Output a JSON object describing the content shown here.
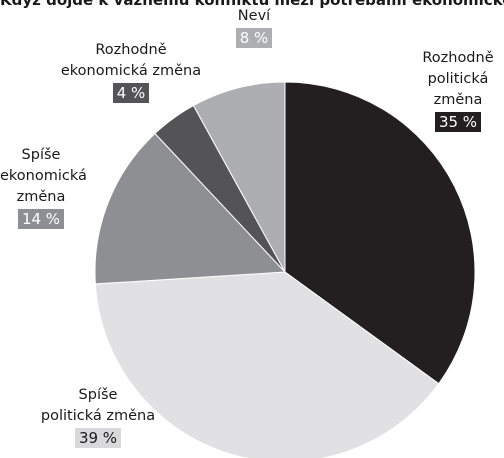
{
  "title": "Když dojde k vážnému konfliktu mezi potřebami ekonomického rozvoje a politickou změnou",
  "chart_data": {
    "type": "pie",
    "start_angle_deg": -90,
    "direction": "clockwise",
    "slices": [
      {
        "label": "Rozhodně politická změna",
        "label_lines": [
          "Rozhodně",
          "politická",
          "změna"
        ],
        "value": 35,
        "value_text": "35 %",
        "color": "#231f20",
        "badge_color": "#231f20"
      },
      {
        "label": "Spíše politická změna",
        "label_lines": [
          "Spíše",
          "politická změna"
        ],
        "value": 39,
        "value_text": "39 %",
        "color": "#e1e1e3",
        "badge_color": "#d9d9db",
        "badge_text_color": "#1a1a1a"
      },
      {
        "label": "Spíše ekonomická změna",
        "label_lines": [
          "Spíše",
          "ekonomická",
          "změna"
        ],
        "value": 14,
        "value_text": "14 %",
        "color": "#8e8f92",
        "badge_color": "#8e8f92"
      },
      {
        "label": "Rozhodně ekonomická změna",
        "label_lines": [
          "Rozhodně",
          "ekonomická změna"
        ],
        "value": 4,
        "value_text": "4 %",
        "color": "#545456",
        "badge_color": "#545456"
      },
      {
        "label": "Neví",
        "label_lines": [
          "Neví"
        ],
        "value": 8,
        "value_text": "8 %",
        "color": "#adaeb1",
        "badge_color": "#adaeb1"
      }
    ]
  }
}
